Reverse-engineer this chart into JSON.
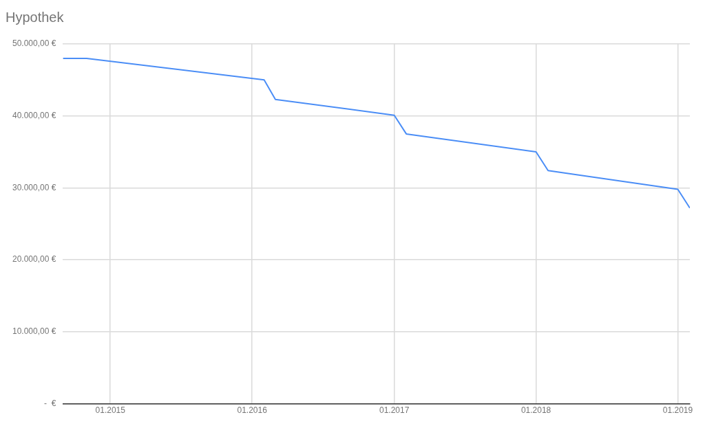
{
  "chart_data": {
    "type": "line",
    "title": "Hypothek",
    "x": [
      "2014-09",
      "2014-11",
      "2016-02",
      "2016-03",
      "2017-01",
      "2017-02",
      "2018-01",
      "2018-02",
      "2019-01",
      "2019-02"
    ],
    "series": [
      {
        "color": "#4a8df6",
        "values": [
          48000,
          48000,
          45000,
          42300,
          40100,
          37500,
          35000,
          32400,
          29800,
          27200
        ]
      }
    ],
    "xlim": [
      "2014-09",
      "2019-02"
    ],
    "xticks": [
      {
        "value": "2015-01",
        "label": "01.2015"
      },
      {
        "value": "2016-01",
        "label": "01.2016"
      },
      {
        "value": "2017-01",
        "label": "01.2017"
      },
      {
        "value": "2018-01",
        "label": "01.2018"
      },
      {
        "value": "2019-01",
        "label": "01.2019"
      }
    ],
    "ylim": [
      0,
      50000
    ],
    "yticks": [
      {
        "value": 0,
        "label": "-  €"
      },
      {
        "value": 10000,
        "label": "10.000,00 €"
      },
      {
        "value": 20000,
        "label": "20.000,00 €"
      },
      {
        "value": 30000,
        "label": "30.000,00 €"
      },
      {
        "value": 40000,
        "label": "40.000,00 €"
      },
      {
        "value": 50000,
        "label": "50.000,00 €"
      }
    ],
    "grid": true,
    "legend": false,
    "marker": "none",
    "line_style": "solid"
  }
}
